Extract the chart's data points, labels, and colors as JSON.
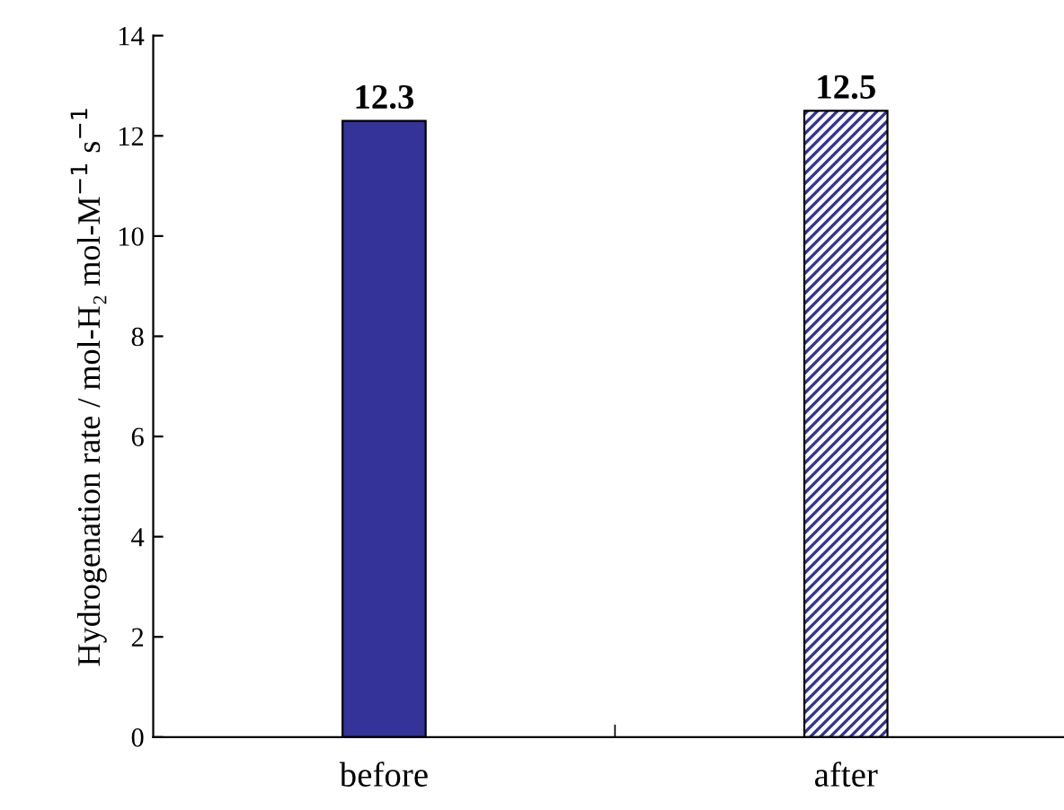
{
  "chart_data": {
    "type": "bar",
    "ylabel": "Hydrogenation rate / mol-H₂ mol-M$^{−1}$ s$^{−1}$",
    "categories": [
      "before",
      "after"
    ],
    "values": [
      12.3,
      12.5
    ],
    "colors": [
      "#333399",
      "#333399"
    ],
    "ylim": [
      0,
      14
    ],
    "yticks": [
      0,
      2,
      4,
      6,
      8,
      10,
      12,
      14
    ],
    "data_labels": true,
    "grid": false,
    "legend": false
  }
}
